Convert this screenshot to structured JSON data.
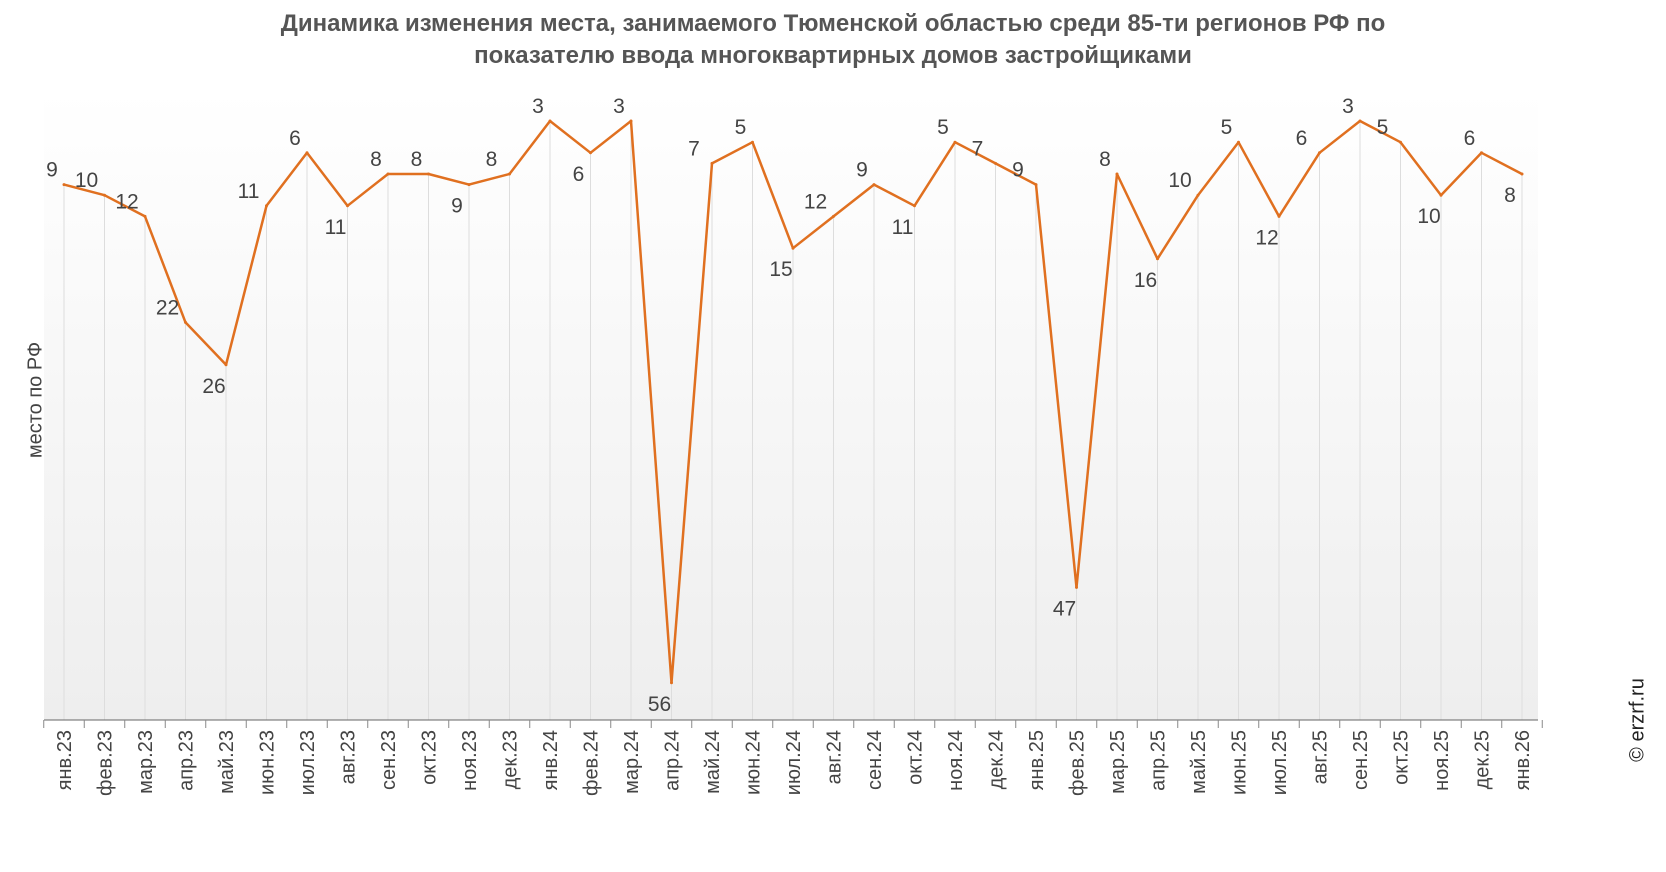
{
  "chart_data": {
    "type": "line",
    "title_lines": [
      "Динамика изменения места, занимаемого Тюменской областью среди 85-ти регионов РФ по",
      "показателю ввода многоквартирных домов застройщиками"
    ],
    "xlabel": "",
    "ylabel": "место по РФ",
    "y_inverted": true,
    "grid": "vertical",
    "categories": [
      "янв.23",
      "фев.23",
      "мар.23",
      "апр.23",
      "май.23",
      "июн.23",
      "июл.23",
      "авг.23",
      "сен.23",
      "окт.23",
      "ноя.23",
      "дек.23",
      "янв.24",
      "фев.24",
      "мар.24",
      "апр.24",
      "май.24",
      "июн.24",
      "июл.24",
      "авг.24",
      "сен.24",
      "окт.24",
      "ноя.24",
      "дек.24",
      "янв.25",
      "фев.25",
      "мар.25",
      "апр.25",
      "май.25",
      "июн.25",
      "июл.25",
      "авг.25",
      "сен.25",
      "окт.25",
      "ноя.25",
      "дек.25",
      "янв.26"
    ],
    "series": [
      {
        "name": "",
        "color": "#e07020",
        "values": [
          9,
          10,
          12,
          22,
          26,
          11,
          6,
          11,
          8,
          8,
          9,
          8,
          3,
          6,
          3,
          56,
          7,
          5,
          15,
          12,
          9,
          11,
          5,
          7,
          9,
          47,
          8,
          16,
          10,
          5,
          12,
          6,
          3,
          5,
          10,
          6,
          8
        ]
      }
    ]
  },
  "credit": "© erzrf.ru",
  "colors": {
    "line": "#e07020",
    "grid": "#dddddd",
    "axis": "#666666"
  }
}
